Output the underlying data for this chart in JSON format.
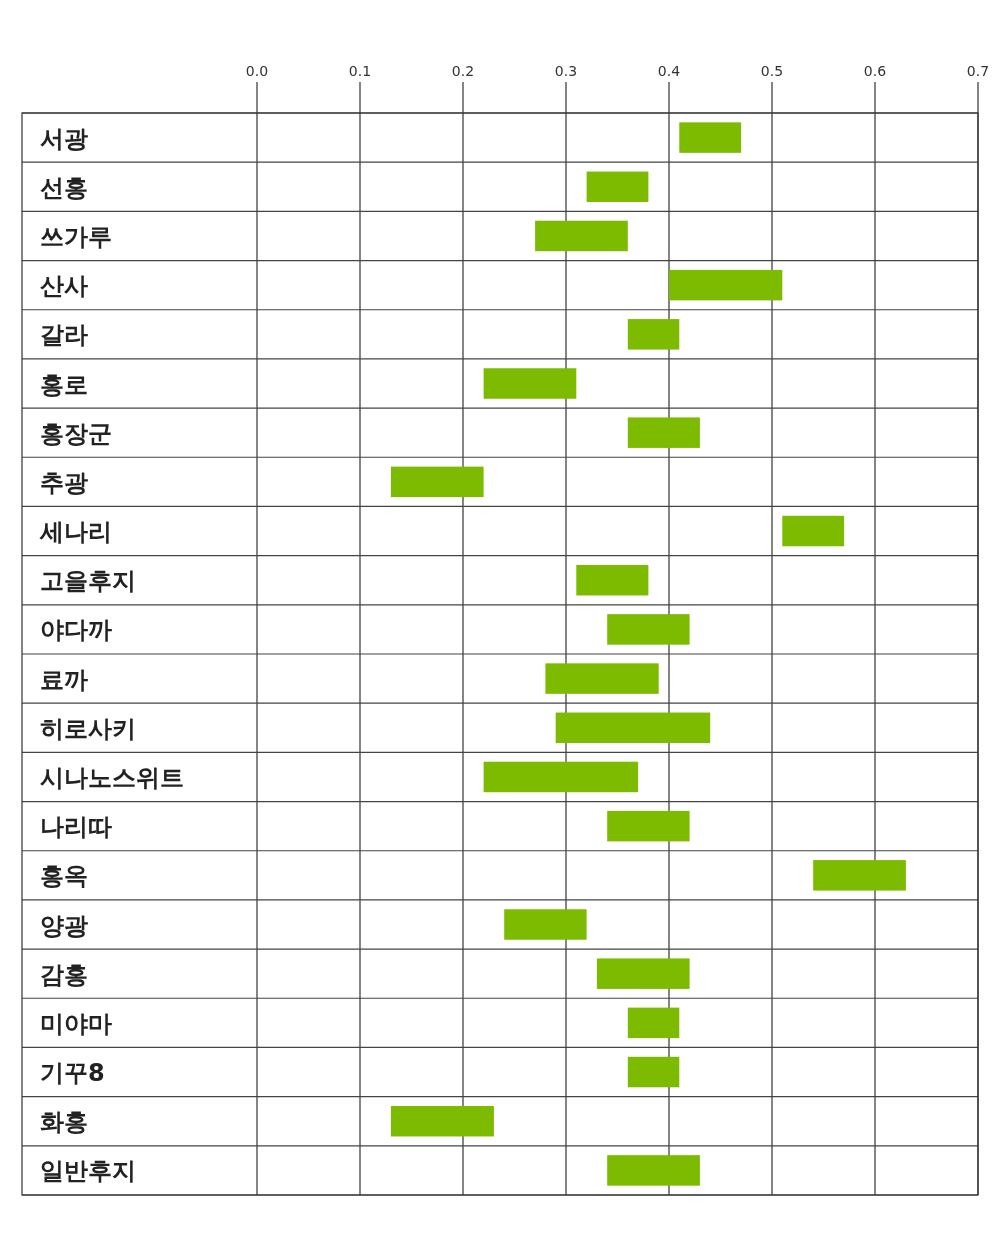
{
  "chart_data": {
    "type": "bar",
    "orientation": "horizontal",
    "categories": [
      "서광",
      "선홍",
      "쓰가루",
      "산사",
      "갈라",
      "홍로",
      "홍장군",
      "추광",
      "세나리",
      "고을후지",
      "야다까",
      "료까",
      "히로사키",
      "시나노스위트",
      "나리따",
      "홍옥",
      "양광",
      "감홍",
      "미야마",
      "기꾸8",
      "화홍",
      "일반후지"
    ],
    "base": [
      0.41,
      0.32,
      0.27,
      0.4,
      0.36,
      0.22,
      0.36,
      0.13,
      0.51,
      0.31,
      0.34,
      0.28,
      0.29,
      0.22,
      0.34,
      0.54,
      0.24,
      0.33,
      0.36,
      0.36,
      0.13,
      0.34
    ],
    "values": [
      0.06,
      0.06,
      0.09,
      0.11,
      0.05,
      0.09,
      0.07,
      0.09,
      0.06,
      0.07,
      0.08,
      0.11,
      0.15,
      0.15,
      0.08,
      0.09,
      0.08,
      0.09,
      0.05,
      0.05,
      0.1,
      0.09
    ],
    "color": "#7cbb00",
    "xlim": [
      0,
      0.7
    ],
    "xticks": [
      {
        "value": 0,
        "label": "0.0"
      },
      {
        "value": 0.1,
        "label": "0.1"
      },
      {
        "value": 0.2,
        "label": "0.2"
      },
      {
        "value": 0.3,
        "label": "0.3"
      },
      {
        "value": 0.4,
        "label": "0.4"
      },
      {
        "value": 0.5,
        "label": "0.5"
      },
      {
        "value": 0.6,
        "label": "0.6"
      },
      {
        "value": 0.7,
        "label": "0.7"
      }
    ],
    "grid": true
  }
}
